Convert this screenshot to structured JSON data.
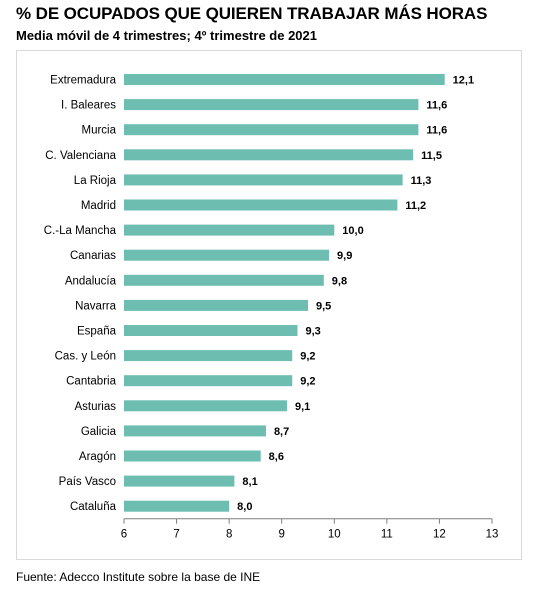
{
  "header": {
    "title": "% DE OCUPADOS QUE QUIEREN TRABAJAR MÁS HORAS",
    "subtitle": "Media móvil de 4 trimestres; 4º trimestre de 2021"
  },
  "footer": {
    "source": "Fuente: Adecco Institute sobre la base de INE"
  },
  "colors": {
    "bar": "#6dbdb1",
    "axis": "#7f7f7f",
    "text": "#000000"
  },
  "chart_data": {
    "type": "bar",
    "orientation": "horizontal",
    "title": "% DE OCUPADOS QUE QUIEREN TRABAJAR MÁS HORAS",
    "subtitle": "Media móvil de 4 trimestres; 4º trimestre de 2021",
    "categories": [
      "Extremadura",
      "I. Baleares",
      "Murcia",
      "C. Valenciana",
      "La Rioja",
      "Madrid",
      "C.-La Mancha",
      "Canarias",
      "Andalucía",
      "Navarra",
      "España",
      "Cas. y León",
      "Cantabria",
      "Asturias",
      "Galicia",
      "Aragón",
      "País Vasco",
      "Cataluña"
    ],
    "values": [
      12.1,
      11.6,
      11.6,
      11.5,
      11.3,
      11.2,
      10.0,
      9.9,
      9.8,
      9.5,
      9.3,
      9.2,
      9.2,
      9.1,
      8.7,
      8.6,
      8.1,
      8.0
    ],
    "value_labels": [
      "12,1",
      "11,6",
      "11,6",
      "11,5",
      "11,3",
      "11,2",
      "10,0",
      "9,9",
      "9,8",
      "9,5",
      "9,3",
      "9,2",
      "9,2",
      "9,1",
      "8,7",
      "8,6",
      "8,1",
      "8,0"
    ],
    "xlim": [
      6,
      13
    ],
    "xticks": [
      6,
      7,
      8,
      9,
      10,
      11,
      12,
      13
    ],
    "xlabel": "",
    "ylabel": "",
    "grid": false,
    "legend": "none"
  }
}
